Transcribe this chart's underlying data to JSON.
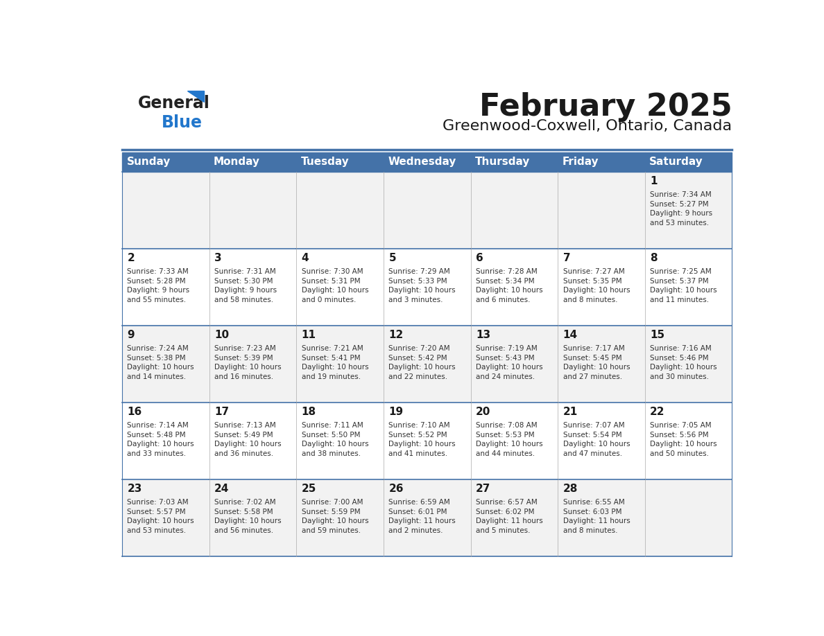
{
  "title": "February 2025",
  "subtitle": "Greenwood-Coxwell, Ontario, Canada",
  "header_bg": "#4472A8",
  "header_text": "#FFFFFF",
  "row_bg_odd": "#F2F2F2",
  "row_bg_even": "#FFFFFF",
  "border_color": "#4472A8",
  "day_headers": [
    "Sunday",
    "Monday",
    "Tuesday",
    "Wednesday",
    "Thursday",
    "Friday",
    "Saturday"
  ],
  "title_color": "#1a1a1a",
  "subtitle_color": "#1a1a1a",
  "cell_text_color": "#333333",
  "day_num_color": "#1a1a1a",
  "weeks": [
    [
      {
        "day": "",
        "info": ""
      },
      {
        "day": "",
        "info": ""
      },
      {
        "day": "",
        "info": ""
      },
      {
        "day": "",
        "info": ""
      },
      {
        "day": "",
        "info": ""
      },
      {
        "day": "",
        "info": ""
      },
      {
        "day": "1",
        "info": "Sunrise: 7:34 AM\nSunset: 5:27 PM\nDaylight: 9 hours\nand 53 minutes."
      }
    ],
    [
      {
        "day": "2",
        "info": "Sunrise: 7:33 AM\nSunset: 5:28 PM\nDaylight: 9 hours\nand 55 minutes."
      },
      {
        "day": "3",
        "info": "Sunrise: 7:31 AM\nSunset: 5:30 PM\nDaylight: 9 hours\nand 58 minutes."
      },
      {
        "day": "4",
        "info": "Sunrise: 7:30 AM\nSunset: 5:31 PM\nDaylight: 10 hours\nand 0 minutes."
      },
      {
        "day": "5",
        "info": "Sunrise: 7:29 AM\nSunset: 5:33 PM\nDaylight: 10 hours\nand 3 minutes."
      },
      {
        "day": "6",
        "info": "Sunrise: 7:28 AM\nSunset: 5:34 PM\nDaylight: 10 hours\nand 6 minutes."
      },
      {
        "day": "7",
        "info": "Sunrise: 7:27 AM\nSunset: 5:35 PM\nDaylight: 10 hours\nand 8 minutes."
      },
      {
        "day": "8",
        "info": "Sunrise: 7:25 AM\nSunset: 5:37 PM\nDaylight: 10 hours\nand 11 minutes."
      }
    ],
    [
      {
        "day": "9",
        "info": "Sunrise: 7:24 AM\nSunset: 5:38 PM\nDaylight: 10 hours\nand 14 minutes."
      },
      {
        "day": "10",
        "info": "Sunrise: 7:23 AM\nSunset: 5:39 PM\nDaylight: 10 hours\nand 16 minutes."
      },
      {
        "day": "11",
        "info": "Sunrise: 7:21 AM\nSunset: 5:41 PM\nDaylight: 10 hours\nand 19 minutes."
      },
      {
        "day": "12",
        "info": "Sunrise: 7:20 AM\nSunset: 5:42 PM\nDaylight: 10 hours\nand 22 minutes."
      },
      {
        "day": "13",
        "info": "Sunrise: 7:19 AM\nSunset: 5:43 PM\nDaylight: 10 hours\nand 24 minutes."
      },
      {
        "day": "14",
        "info": "Sunrise: 7:17 AM\nSunset: 5:45 PM\nDaylight: 10 hours\nand 27 minutes."
      },
      {
        "day": "15",
        "info": "Sunrise: 7:16 AM\nSunset: 5:46 PM\nDaylight: 10 hours\nand 30 minutes."
      }
    ],
    [
      {
        "day": "16",
        "info": "Sunrise: 7:14 AM\nSunset: 5:48 PM\nDaylight: 10 hours\nand 33 minutes."
      },
      {
        "day": "17",
        "info": "Sunrise: 7:13 AM\nSunset: 5:49 PM\nDaylight: 10 hours\nand 36 minutes."
      },
      {
        "day": "18",
        "info": "Sunrise: 7:11 AM\nSunset: 5:50 PM\nDaylight: 10 hours\nand 38 minutes."
      },
      {
        "day": "19",
        "info": "Sunrise: 7:10 AM\nSunset: 5:52 PM\nDaylight: 10 hours\nand 41 minutes."
      },
      {
        "day": "20",
        "info": "Sunrise: 7:08 AM\nSunset: 5:53 PM\nDaylight: 10 hours\nand 44 minutes."
      },
      {
        "day": "21",
        "info": "Sunrise: 7:07 AM\nSunset: 5:54 PM\nDaylight: 10 hours\nand 47 minutes."
      },
      {
        "day": "22",
        "info": "Sunrise: 7:05 AM\nSunset: 5:56 PM\nDaylight: 10 hours\nand 50 minutes."
      }
    ],
    [
      {
        "day": "23",
        "info": "Sunrise: 7:03 AM\nSunset: 5:57 PM\nDaylight: 10 hours\nand 53 minutes."
      },
      {
        "day": "24",
        "info": "Sunrise: 7:02 AM\nSunset: 5:58 PM\nDaylight: 10 hours\nand 56 minutes."
      },
      {
        "day": "25",
        "info": "Sunrise: 7:00 AM\nSunset: 5:59 PM\nDaylight: 10 hours\nand 59 minutes."
      },
      {
        "day": "26",
        "info": "Sunrise: 6:59 AM\nSunset: 6:01 PM\nDaylight: 11 hours\nand 2 minutes."
      },
      {
        "day": "27",
        "info": "Sunrise: 6:57 AM\nSunset: 6:02 PM\nDaylight: 11 hours\nand 5 minutes."
      },
      {
        "day": "28",
        "info": "Sunrise: 6:55 AM\nSunset: 6:03 PM\nDaylight: 11 hours\nand 8 minutes."
      },
      {
        "day": "",
        "info": ""
      }
    ]
  ]
}
